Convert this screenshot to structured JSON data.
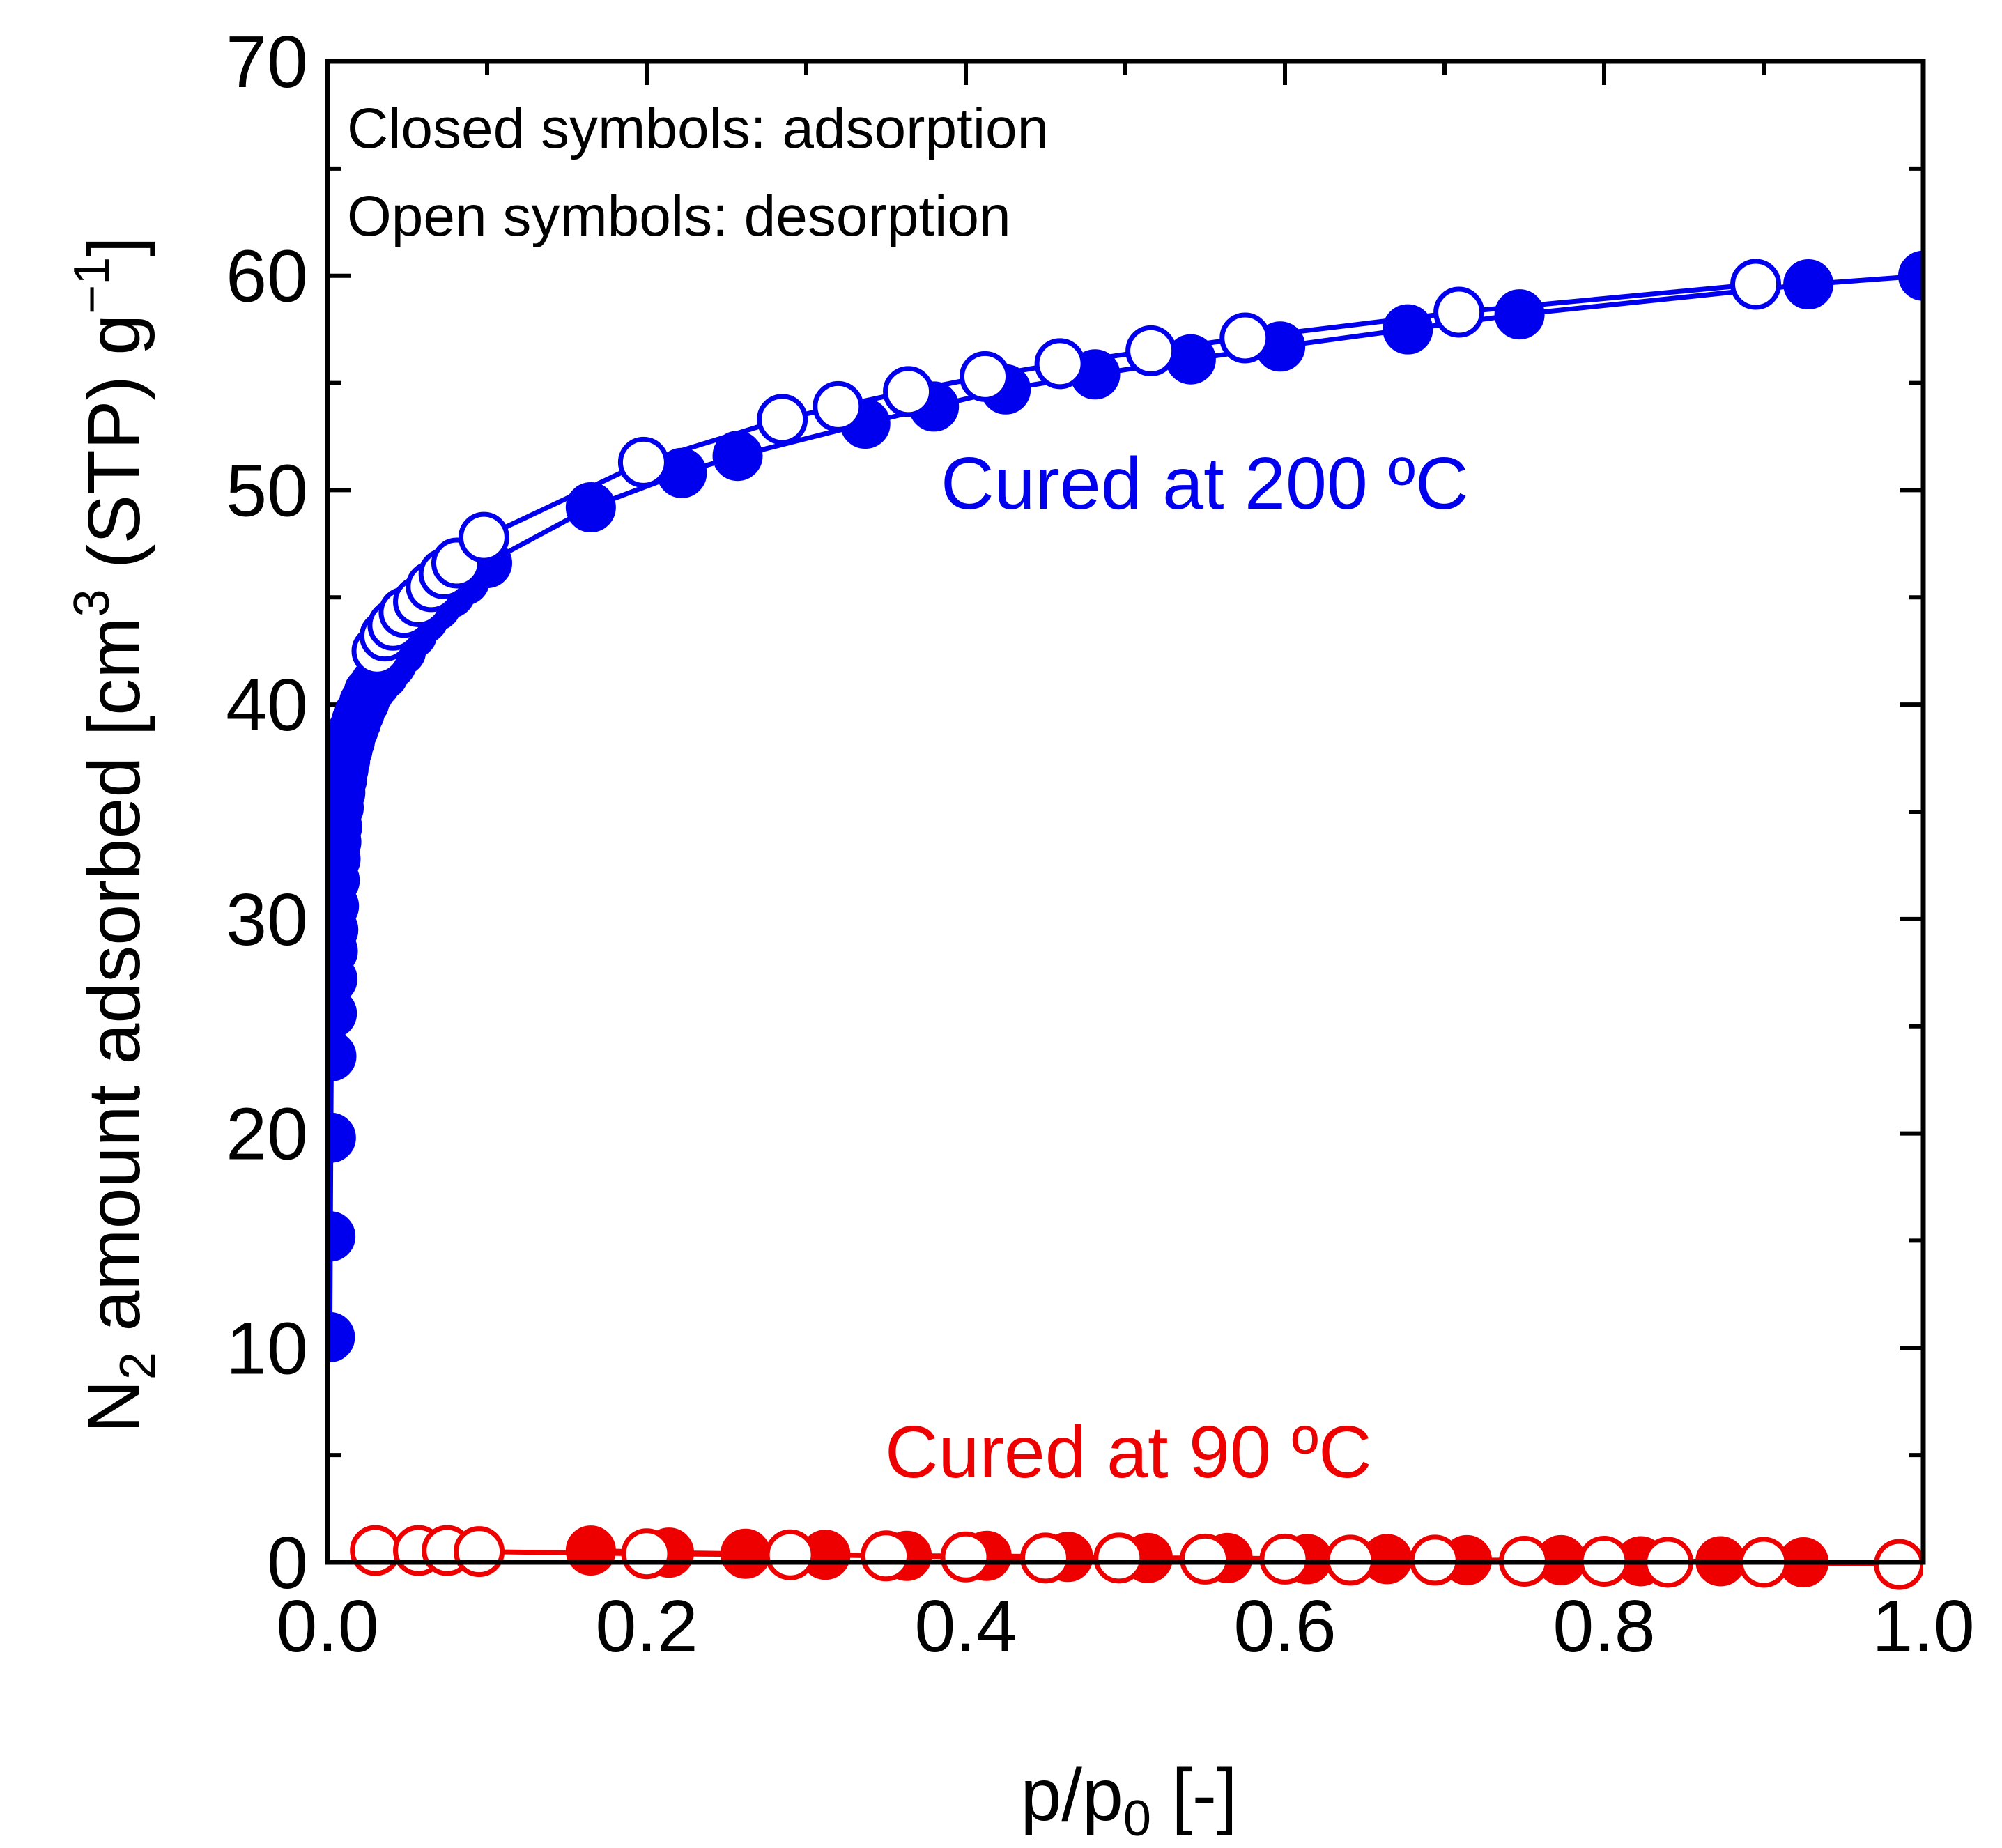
{
  "chart_data": {
    "type": "scatter",
    "xlabel": {
      "base": "p/p",
      "sub": "0",
      "tail": " [-]"
    },
    "ylabel": {
      "a": "N",
      "a_sub": "2",
      "b": " amount adsorbed [cm",
      "b_sup": "3",
      "c": " (STP) g",
      "c_sup": "−1",
      "d": "]"
    },
    "xlim": [
      0.0,
      1.0
    ],
    "ylim": [
      0,
      70
    ],
    "xticks": [
      0.0,
      0.2,
      0.4,
      0.6,
      0.8,
      1.0
    ],
    "xtick_labels": [
      "0.0",
      "0.2",
      "0.4",
      "0.6",
      "0.8",
      "1.0"
    ],
    "yticks": [
      0,
      10,
      20,
      30,
      40,
      50,
      60,
      70
    ],
    "ytick_labels": [
      "0",
      "10",
      "20",
      "30",
      "40",
      "50",
      "60",
      "70"
    ],
    "notes": [
      "Closed symbols: adsorption",
      "Open symbols: desorption"
    ],
    "series": [
      {
        "name": "Cured at 200 °C adsorption",
        "label": "Cured at 200 ºC",
        "color": "#0000ee",
        "filled": true,
        "x": [
          0.0015,
          0.0018,
          0.0021,
          0.0024,
          0.0027,
          0.003,
          0.0033,
          0.0036,
          0.004,
          0.0045,
          0.005,
          0.0055,
          0.006,
          0.007,
          0.008,
          0.009,
          0.01,
          0.011,
          0.0125,
          0.014,
          0.016,
          0.018,
          0.02,
          0.023,
          0.026,
          0.03,
          0.035,
          0.04,
          0.046,
          0.053,
          0.06,
          0.068,
          0.077,
          0.086,
          0.1,
          0.165,
          0.222,
          0.257,
          0.337,
          0.38,
          0.425,
          0.481,
          0.541,
          0.597,
          0.677,
          0.747,
          0.928,
          1.0
        ],
        "y": [
          10.5,
          15.2,
          19.8,
          23.6,
          25.6,
          27.2,
          28.5,
          29.5,
          30.6,
          31.8,
          32.8,
          33.6,
          34.3,
          35.2,
          35.9,
          36.5,
          37.0,
          37.4,
          37.9,
          38.3,
          38.8,
          39.2,
          39.6,
          40.1,
          40.6,
          41.0,
          41.4,
          41.9,
          42.5,
          43.3,
          44.0,
          44.6,
          45.2,
          45.8,
          46.6,
          49.2,
          50.8,
          51.6,
          53.1,
          53.9,
          54.7,
          55.4,
          56.1,
          56.7,
          57.5,
          58.2,
          59.6,
          60.0
        ]
      },
      {
        "name": "Cured at 200 °C desorption",
        "color": "#0000ee",
        "filled": false,
        "x": [
          0.031,
          0.036,
          0.041,
          0.048,
          0.057,
          0.065,
          0.073,
          0.081,
          0.098,
          0.198,
          0.285,
          0.32,
          0.364,
          0.412,
          0.459,
          0.516,
          0.575,
          0.709,
          0.895
        ],
        "y": [
          42.5,
          43.2,
          43.7,
          44.3,
          44.8,
          45.5,
          46.1,
          46.6,
          47.8,
          51.3,
          53.3,
          53.9,
          54.6,
          55.3,
          55.9,
          56.5,
          57.1,
          58.3,
          59.6
        ]
      },
      {
        "name": "Cured at 90 °C adsorption",
        "label": "Cured at 90 ºC",
        "color": "#ee0000",
        "filled": true,
        "x": [
          0.165,
          0.214,
          0.262,
          0.312,
          0.363,
          0.413,
          0.464,
          0.514,
          0.564,
          0.614,
          0.664,
          0.714,
          0.773,
          0.823,
          0.873,
          0.925
        ],
        "y": [
          0.55,
          0.45,
          0.4,
          0.35,
          0.3,
          0.3,
          0.25,
          0.2,
          0.2,
          0.15,
          0.15,
          0.1,
          0.1,
          0.05,
          0.05,
          0.0
        ]
      },
      {
        "name": "Cured at 90 °C desorption",
        "color": "#ee0000",
        "filled": false,
        "x": [
          0.03,
          0.057,
          0.075,
          0.095,
          0.2,
          0.29,
          0.35,
          0.4,
          0.45,
          0.496,
          0.55,
          0.6,
          0.641,
          0.694,
          0.75,
          0.8,
          0.84,
          0.9,
          0.985
        ],
        "y": [
          0.55,
          0.55,
          0.55,
          0.5,
          0.4,
          0.35,
          0.3,
          0.25,
          0.2,
          0.2,
          0.15,
          0.15,
          0.1,
          0.1,
          0.05,
          0.05,
          0.0,
          0.0,
          -0.1
        ]
      }
    ]
  }
}
